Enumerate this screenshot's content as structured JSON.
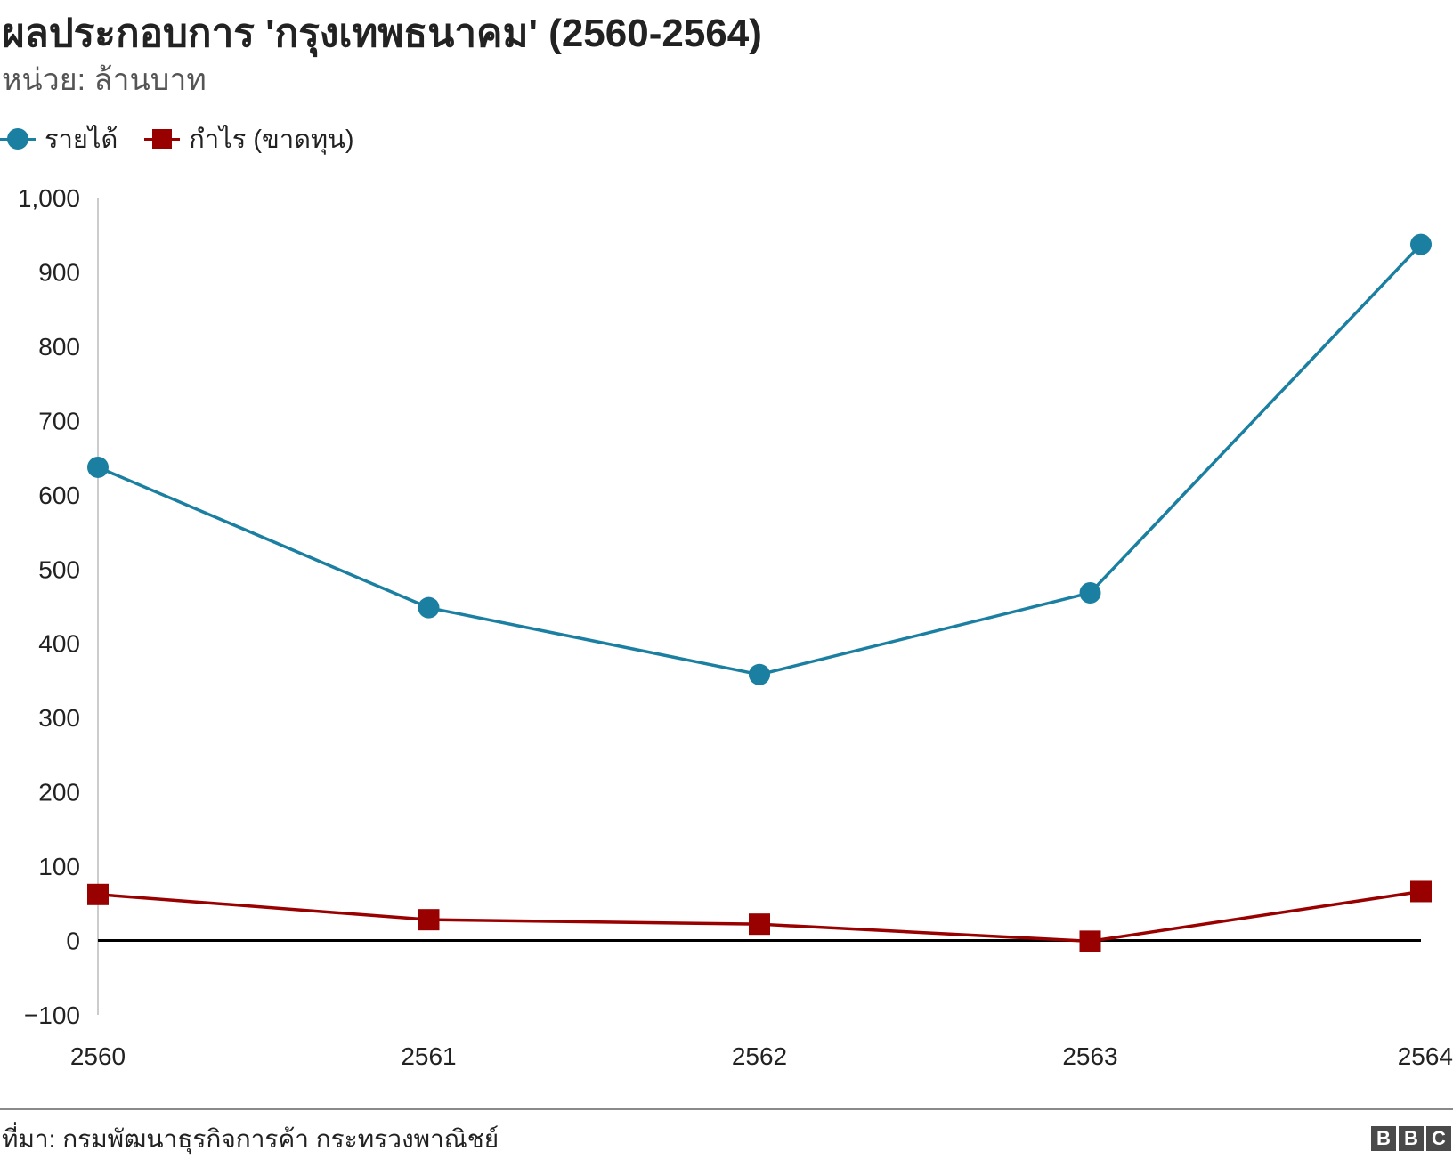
{
  "title": "ผลประกอบการ 'กรุงเทพธนาคม' (2560-2564)",
  "subtitle": "หน่วย: ล้านบาท",
  "source": "ที่มา: กรมพัฒนาธุรกิจการค้า กระทรวงพาณิชย์",
  "logo": [
    "B",
    "B",
    "C"
  ],
  "colors": {
    "revenue": "#1a7fa0",
    "profit": "#990000",
    "axis": "#cccccc",
    "zero_line": "#000000"
  },
  "chart_data": {
    "type": "line",
    "title": "ผลประกอบการ 'กรุงเทพธนาคม' (2560-2564)",
    "ylabel": "",
    "xlabel": "",
    "categories": [
      "2560",
      "2561",
      "2562",
      "2563",
      "2564"
    ],
    "series": [
      {
        "name": "รายได้",
        "marker": "circle",
        "color": "#1a7fa0",
        "values": [
          637,
          448,
          358,
          468,
          937
        ]
      },
      {
        "name": "กำไร (ขาดทุน)",
        "marker": "square",
        "color": "#990000",
        "values": [
          62,
          28,
          22,
          -1,
          66
        ]
      }
    ],
    "ylim": [
      -100,
      1000
    ],
    "yticks": [
      -100,
      0,
      100,
      200,
      300,
      400,
      500,
      600,
      700,
      800,
      900,
      1000
    ],
    "ytick_labels": [
      "−100",
      "0",
      "100",
      "200",
      "300",
      "400",
      "500",
      "600",
      "700",
      "800",
      "900",
      "1,000"
    ],
    "grid": false,
    "legend_position": "top-left"
  }
}
